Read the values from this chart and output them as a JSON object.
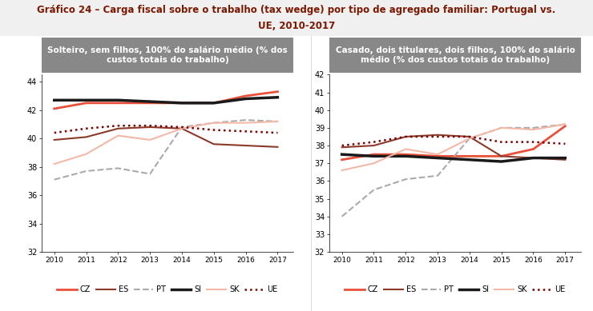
{
  "title_line1": "Gráfico 24 – Carga fiscal sobre o trabalho (tax wedge) por tipo de agregado familiar: Portugal vs.",
  "title_line2": "UE, 2010-2017",
  "subtitle_left": "Solteiro, sem filhos, 100% do salário médio (% dos\ncustos totais do trabalho)",
  "subtitle_right": "Casado, dois titulares, dois filhos, 100% do salário\nmédio (% dos custos totais do trabalho)",
  "years": [
    2010,
    2011,
    2012,
    2013,
    2014,
    2015,
    2016,
    2017
  ],
  "left": {
    "CZ": [
      42.1,
      42.5,
      42.5,
      42.5,
      42.5,
      42.5,
      43.0,
      43.3
    ],
    "ES": [
      39.9,
      40.1,
      40.7,
      40.8,
      40.7,
      39.6,
      39.5,
      39.4
    ],
    "PT": [
      37.1,
      37.7,
      37.9,
      37.5,
      40.8,
      41.1,
      41.3,
      41.2
    ],
    "SI": [
      42.7,
      42.7,
      42.7,
      42.6,
      42.5,
      42.5,
      42.8,
      42.9
    ],
    "SK": [
      38.2,
      38.9,
      40.2,
      39.9,
      40.7,
      41.1,
      41.1,
      41.2
    ],
    "UE": [
      40.4,
      40.7,
      40.9,
      40.9,
      40.8,
      40.6,
      40.5,
      40.4
    ]
  },
  "right": {
    "CZ": [
      37.2,
      37.5,
      37.5,
      37.4,
      37.4,
      37.4,
      37.8,
      39.1
    ],
    "ES": [
      37.9,
      38.0,
      38.5,
      38.6,
      38.5,
      37.4,
      37.3,
      37.2
    ],
    "PT": [
      34.0,
      35.5,
      36.1,
      36.3,
      38.4,
      39.0,
      39.0,
      39.2
    ],
    "SI": [
      37.5,
      37.4,
      37.4,
      37.3,
      37.2,
      37.1,
      37.3,
      37.3
    ],
    "SK": [
      36.6,
      37.0,
      37.8,
      37.5,
      38.4,
      39.0,
      38.9,
      39.2
    ],
    "UE": [
      38.0,
      38.2,
      38.5,
      38.5,
      38.5,
      38.2,
      38.2,
      38.1
    ]
  },
  "ylim_left": [
    32,
    44.5
  ],
  "ylim_right": [
    32,
    42
  ],
  "yticks_left": [
    32,
    34,
    36,
    38,
    40,
    42,
    44
  ],
  "yticks_right": [
    32,
    33,
    34,
    35,
    36,
    37,
    38,
    39,
    40,
    41,
    42
  ],
  "colors": {
    "CZ": "#e8503a",
    "ES": "#8b3a2a",
    "PT": "#aaaaaa",
    "SI": "#1a1a1a",
    "SK": "#f4b8a8",
    "UE": "#7a0000"
  },
  "line_styles": {
    "CZ": "solid",
    "ES": "solid",
    "PT": "dashed",
    "SI": "solid",
    "SK": "solid",
    "UE": "dotted"
  },
  "line_widths": {
    "CZ": 2.0,
    "ES": 1.5,
    "PT": 1.5,
    "SI": 2.5,
    "SK": 1.5,
    "UE": 1.8
  },
  "subtitle_bg": "#888888",
  "title_color": "#7a1800",
  "fig_bg": "#ffffff"
}
